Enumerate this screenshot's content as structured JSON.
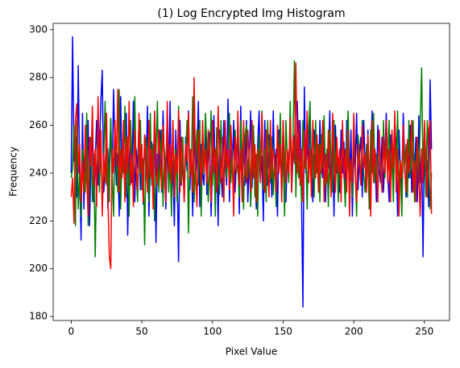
{
  "chart_data": {
    "type": "line",
    "title": "(1) Log Encrypted Img Histogram",
    "xlabel": "Pixel Value",
    "ylabel": "Frequency",
    "xlim": [
      -12.75,
      267.75
    ],
    "ylim": [
      178.35,
      302.65
    ],
    "xticks": [
      0,
      50,
      100,
      150,
      200,
      250
    ],
    "yticks": [
      180,
      200,
      220,
      240,
      260,
      280,
      300
    ],
    "x": [
      0,
      1,
      2,
      3,
      4,
      5,
      6,
      7,
      8,
      9,
      10,
      11,
      12,
      13,
      14,
      15,
      16,
      17,
      18,
      19,
      20,
      21,
      22,
      23,
      24,
      25,
      26,
      27,
      28,
      29,
      30,
      31,
      32,
      33,
      34,
      35,
      36,
      37,
      38,
      39,
      40,
      41,
      42,
      43,
      44,
      45,
      46,
      47,
      48,
      49,
      50,
      51,
      52,
      53,
      54,
      55,
      56,
      57,
      58,
      59,
      60,
      61,
      62,
      63,
      64,
      65,
      66,
      67,
      68,
      69,
      70,
      71,
      72,
      73,
      74,
      75,
      76,
      77,
      78,
      79,
      80,
      81,
      82,
      83,
      84,
      85,
      86,
      87,
      88,
      89,
      90,
      91,
      92,
      93,
      94,
      95,
      96,
      97,
      98,
      99,
      100,
      101,
      102,
      103,
      104,
      105,
      106,
      107,
      108,
      109,
      110,
      111,
      112,
      113,
      114,
      115,
      116,
      117,
      118,
      119,
      120,
      121,
      122,
      123,
      124,
      125,
      126,
      127,
      128,
      129,
      130,
      131,
      132,
      133,
      134,
      135,
      136,
      137,
      138,
      139,
      140,
      141,
      142,
      143,
      144,
      145,
      146,
      147,
      148,
      149,
      150,
      151,
      152,
      153,
      154,
      155,
      156,
      157,
      158,
      159,
      160,
      161,
      162,
      163,
      164,
      165,
      166,
      167,
      168,
      169,
      170,
      171,
      172,
      173,
      174,
      175,
      176,
      177,
      178,
      179,
      180,
      181,
      182,
      183,
      184,
      185,
      186,
      187,
      188,
      189,
      190,
      191,
      192,
      193,
      194,
      195,
      196,
      197,
      198,
      199,
      200,
      201,
      202,
      203,
      204,
      205,
      206,
      207,
      208,
      209,
      210,
      211,
      212,
      213,
      214,
      215,
      216,
      217,
      218,
      219,
      220,
      221,
      222,
      223,
      224,
      225,
      226,
      227,
      228,
      229,
      230,
      231,
      232,
      233,
      234,
      235,
      236,
      237,
      238,
      239,
      240,
      241,
      242,
      243,
      244,
      245,
      246,
      247,
      248,
      249,
      250,
      251,
      252,
      253,
      254,
      255
    ],
    "series": [
      {
        "color": "#0000ff",
        "values": [
          240,
          297,
          245,
          255,
          230,
          285,
          240,
          212,
          265,
          225,
          250,
          238,
          262,
          218,
          247,
          255,
          228,
          245,
          262,
          235,
          250,
          270,
          283,
          232,
          240,
          258,
          225,
          245,
          262,
          238,
          275,
          250,
          235,
          248,
          222,
          272,
          240,
          255,
          230,
          265,
          214,
          245,
          258,
          236,
          270,
          228,
          250,
          242,
          262,
          233,
          248,
          227,
          256,
          240,
          268,
          222,
          245,
          253,
          236,
          265,
          211,
          248,
          240,
          258,
          232,
          266,
          244,
          225,
          252,
          238,
          270,
          229,
          245,
          218,
          258,
          240,
          203,
          262,
          235,
          248,
          228,
          255,
          241,
          266,
          233,
          250,
          222,
          260,
          238,
          247,
          270,
          226,
          252,
          240,
          235,
          263,
          231,
          248,
          257,
          222,
          245,
          264,
          236,
          252,
          218,
          258,
          241,
          230,
          262,
          246,
          235,
          271,
          228,
          250,
          240,
          262,
          232,
          247,
          256,
          223,
          268,
          240,
          251,
          235,
          262,
          228,
          245,
          266,
          234,
          258,
          241,
          225,
          252,
          266,
          238,
          247,
          220,
          262,
          243,
          235,
          256,
          248,
          230,
          266,
          239,
          250,
          222,
          258,
          246,
          235,
          262,
          228,
          228,
          250,
          240,
          265,
          232,
          247,
          256,
          238,
          270,
          245,
          262,
          230,
          184,
          276,
          240,
          255,
          236,
          265,
          245,
          228,
          258,
          240,
          253,
          233,
          262,
          245,
          238,
          255,
          228,
          250,
          242,
          266,
          235,
          252,
          222,
          260,
          240,
          246,
          232,
          258,
          240,
          253,
          228,
          262,
          245,
          236,
          258,
          222,
          250,
          241,
          265,
          233,
          248,
          255,
          230,
          262,
          244,
          235,
          258,
          225,
          250,
          266,
          238,
          247,
          228,
          260,
          242,
          236,
          255,
          232,
          248,
          265,
          240,
          228,
          256,
          245,
          233,
          262,
          250,
          222,
          258,
          240,
          235,
          265,
          246,
          230,
          252,
          238,
          260,
          232,
          248,
          242,
          255,
          228,
          264,
          236,
          250,
          205,
          258,
          240,
          245,
          226,
          279,
          250
        ]
      },
      {
        "color": "#008000",
        "values": [
          238,
          242,
          260,
          218,
          262,
          225,
          240,
          222,
          250,
          245,
          232,
          265,
          218,
          240,
          255,
          228,
          248,
          205,
          240,
          262,
          232,
          255,
          225,
          246,
          270,
          235,
          250,
          228,
          263,
          240,
          222,
          258,
          245,
          232,
          275,
          225,
          250,
          240,
          268,
          230,
          255,
          222,
          262,
          245,
          235,
          272,
          240,
          228,
          250,
          262,
          233,
          246,
          210,
          255,
          240,
          228,
          265,
          235,
          252,
          220,
          248,
          270,
          232,
          245,
          258,
          226,
          250,
          240,
          266,
          232,
          245,
          222,
          262,
          238,
          250,
          228,
          268,
          242,
          236,
          255,
          230,
          248,
          262,
          215,
          250,
          240,
          272,
          228,
          245,
          258,
          235,
          262,
          222,
          250,
          240,
          265,
          252,
          228,
          244,
          266,
          235,
          250,
          222,
          259,
          240,
          231,
          262,
          246,
          228,
          255,
          238,
          248,
          265,
          236,
          250,
          228,
          258,
          245,
          242,
          230,
          262,
          248,
          225,
          255,
          260,
          238,
          250,
          226,
          242,
          260,
          230,
          248,
          222,
          256,
          240,
          266,
          233,
          250,
          228,
          262,
          245,
          236,
          255,
          231,
          248,
          226,
          258,
          240,
          265,
          232,
          250,
          222,
          262,
          245,
          236,
          270,
          240,
          255,
          287,
          230,
          255,
          238,
          246,
          228,
          262,
          242,
          250,
          225,
          258,
          270,
          236,
          248,
          230,
          262,
          240,
          252,
          228,
          256,
          242,
          264,
          235,
          250,
          226,
          258,
          244,
          232,
          262,
          240,
          253,
          228,
          248,
          236,
          258,
          240,
          226,
          252,
          266,
          238,
          245,
          230,
          260,
          242,
          222,
          256,
          248,
          235,
          262,
          240,
          232,
          252,
          244,
          225,
          258,
          240,
          265,
          236,
          248,
          228,
          255,
          242,
          232,
          262,
          238,
          250,
          246,
          262,
          235,
          250,
          228,
          258,
          240,
          266,
          232,
          245,
          222,
          255,
          240,
          252,
          230,
          262,
          238,
          250,
          262,
          228,
          245,
          255,
          235,
          260,
          284,
          242,
          252,
          230,
          262,
          246,
          225,
          240
        ]
      },
      {
        "color": "#ff0000",
        "values": [
          230,
          238,
          219,
          262,
          269,
          240,
          252,
          228,
          245,
          232,
          260,
          238,
          222,
          255,
          243,
          268,
          235,
          250,
          226,
          272,
          240,
          258,
          222,
          248,
          236,
          265,
          230,
          205,
          200,
          250,
          240,
          262,
          243,
          275,
          232,
          250,
          238,
          262,
          228,
          255,
          240,
          270,
          235,
          248,
          226,
          258,
          242,
          233,
          265,
          240,
          252,
          228,
          256,
          245,
          232,
          262,
          238,
          250,
          225,
          266,
          242,
          235,
          258,
          247,
          233,
          260,
          245,
          228,
          270,
          240,
          252,
          236,
          262,
          230,
          248,
          240,
          266,
          232,
          255,
          243,
          228,
          252,
          245,
          265,
          238,
          250,
          232,
          280,
          242,
          226,
          258,
          246,
          235,
          262,
          240,
          250,
          236,
          258,
          244,
          228,
          262,
          240,
          250,
          232,
          268,
          245,
          236,
          255,
          228,
          262,
          242,
          250,
          233,
          260,
          245,
          222,
          255,
          240,
          266,
          235,
          250,
          228,
          262,
          242,
          236,
          258,
          246,
          232,
          262,
          238,
          252,
          228,
          250,
          245,
          236,
          265,
          240,
          232,
          258,
          244,
          230,
          262,
          238,
          250,
          246,
          232,
          260,
          240,
          252,
          228,
          262,
          245,
          236,
          250,
          240,
          263,
          232,
          255,
          244,
          286,
          240,
          262,
          235,
          250,
          228,
          258,
          242,
          266,
          236,
          250,
          230,
          262,
          245,
          238,
          256,
          232,
          252,
          240,
          262,
          228,
          248,
          236,
          258,
          242,
          230,
          265,
          245,
          232,
          255,
          240,
          250,
          228,
          262,
          238,
          250,
          232,
          258,
          222,
          246,
          236,
          265,
          240,
          228,
          252,
          244,
          235,
          260,
          242,
          248,
          232,
          256,
          240,
          222,
          262,
          236,
          250,
          242,
          228,
          258,
          245,
          232,
          255,
          240,
          262,
          236,
          250,
          228,
          258,
          242,
          266,
          232,
          250,
          222,
          245,
          238,
          260,
          242,
          232,
          254,
          240,
          248,
          262,
          232,
          245,
          228,
          255,
          240,
          222,
          250,
          236,
          262,
          245,
          230,
          258,
          262,
          223
        ]
      }
    ]
  }
}
